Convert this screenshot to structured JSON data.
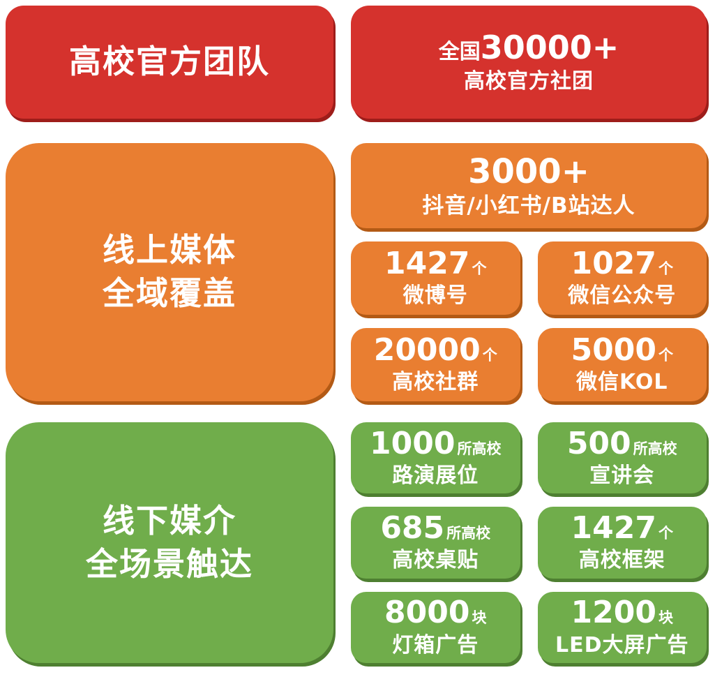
{
  "palette": {
    "red": "#d5322d",
    "red_shadow": "#9e1d1a",
    "orange": "#e97e31",
    "orange_shadow": "#b35a15",
    "green": "#70ad4b",
    "green_shadow": "#4e7f31",
    "text": "#ffffff",
    "bg": "#ffffff"
  },
  "official": {
    "title": "高校官方团队",
    "stat": {
      "prefix": "全国",
      "number": "30000+",
      "label": "高校官方社团"
    }
  },
  "online": {
    "title_line1": "线上媒体",
    "title_line2": "全域覆盖",
    "wide": {
      "number": "3000+",
      "label": "抖音/小红书/B站达人"
    },
    "cards": [
      {
        "number": "1427",
        "unit": "个",
        "label": "微博号"
      },
      {
        "number": "1027",
        "unit": "个",
        "label": "微信公众号"
      },
      {
        "number": "20000",
        "unit": "个",
        "label": "高校社群"
      },
      {
        "number": "5000",
        "unit": "个",
        "label": "微信KOL"
      }
    ]
  },
  "offline": {
    "title_line1": "线下媒介",
    "title_line2": "全场景触达",
    "cards": [
      {
        "number": "1000",
        "unit": "所高校",
        "label": "路演展位"
      },
      {
        "number": "500",
        "unit": "所高校",
        "label": "宣讲会"
      },
      {
        "number": "685",
        "unit": "所高校",
        "label": "高校桌贴"
      },
      {
        "number": "1427",
        "unit": "个",
        "label": "高校框架"
      },
      {
        "number": "8000",
        "unit": "块",
        "label": "灯箱广告"
      },
      {
        "number": "1200",
        "unit": "块",
        "label": "LED大屏广告"
      }
    ]
  }
}
